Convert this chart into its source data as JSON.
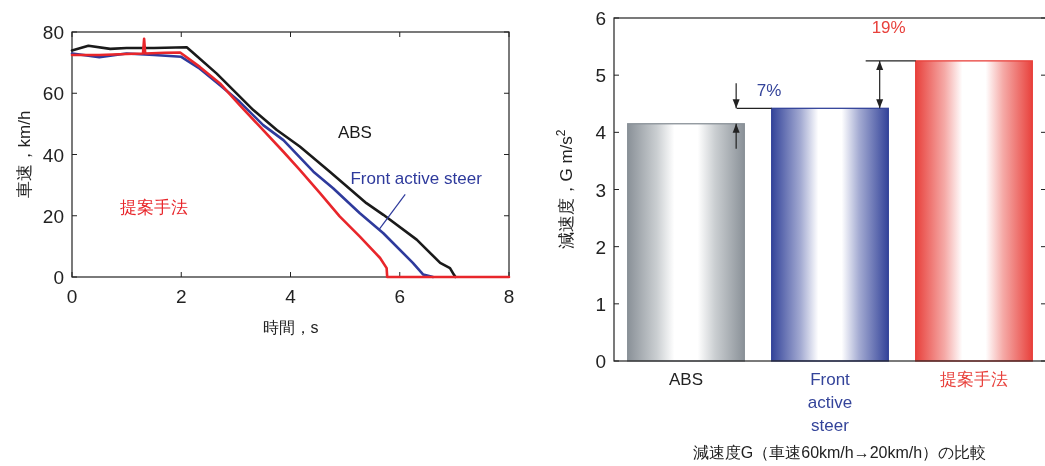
{
  "chart_data": [
    {
      "type": "line",
      "xlabel": "時間，s",
      "ylabel": "車速，km/h",
      "xlim": [
        0,
        8
      ],
      "ylim": [
        0,
        80
      ],
      "xticks": [
        0,
        2,
        4,
        6,
        8
      ],
      "yticks": [
        0,
        20,
        40,
        60,
        80
      ],
      "tick_labels": "xy",
      "series": [
        {
          "name": "ABS",
          "color": "#1a1a1a",
          "x": [
            0,
            0.3,
            0.7,
            1.0,
            1.5,
            2.1,
            2.2,
            2.65,
            3.32,
            3.75,
            4.17,
            4.72,
            5.39,
            5.7,
            6.31,
            6.74,
            6.92,
            6.99,
            7.02
          ],
          "values": [
            74,
            75.5,
            74.5,
            74.8,
            74.8,
            75,
            73.5,
            66.4,
            54.5,
            48,
            42.6,
            34.4,
            24.1,
            20.3,
            12.2,
            4.6,
            2.9,
            0.8,
            0
          ]
        },
        {
          "name": "Front active steer",
          "color": "#2e3a9c",
          "x": [
            0,
            0.5,
            1.0,
            1.5,
            2.0,
            2.34,
            2.71,
            3.07,
            3.5,
            3.87,
            4.42,
            4.78,
            5.27,
            5.7,
            6.24,
            6.43,
            6.61
          ],
          "values": [
            73,
            71.8,
            73,
            72.5,
            71.9,
            68,
            62.6,
            57.2,
            49.6,
            44.7,
            34.4,
            29,
            20.8,
            14.3,
            4.6,
            0.8,
            0
          ]
        },
        {
          "name": "提案手法",
          "color": "#e8262b",
          "x": [
            0,
            0.5,
            1.0,
            1.3,
            1.32,
            1.34,
            1.7,
            1.98,
            2.34,
            2.71,
            3.07,
            3.44,
            3.87,
            4.17,
            4.54,
            4.9,
            5.27,
            5.64,
            5.76,
            5.77,
            8
          ],
          "values": [
            72.5,
            72.5,
            72.8,
            73,
            77.8,
            73,
            73.2,
            73.3,
            68.6,
            63.2,
            56.1,
            49.1,
            40.9,
            35,
            27.4,
            19.8,
            13.2,
            6.2,
            2.9,
            0,
            0
          ]
        }
      ]
    },
    {
      "type": "bar",
      "categories": [
        "ABS",
        "Front active steer",
        "提案手法"
      ],
      "values": [
        4.15,
        4.42,
        5.25
      ],
      "colors": [
        "#8a9198",
        "#34449a",
        "#e8413c"
      ],
      "xlabel": "減速度G（車速60km/h→20km/h）の比較",
      "ylabel": "減速度，G m/s$^{2}$",
      "ylim": [
        0,
        6
      ],
      "yticks": [
        0,
        1,
        2,
        3,
        4,
        5,
        6
      ],
      "annotations": [
        "7%",
        "19%"
      ]
    }
  ]
}
